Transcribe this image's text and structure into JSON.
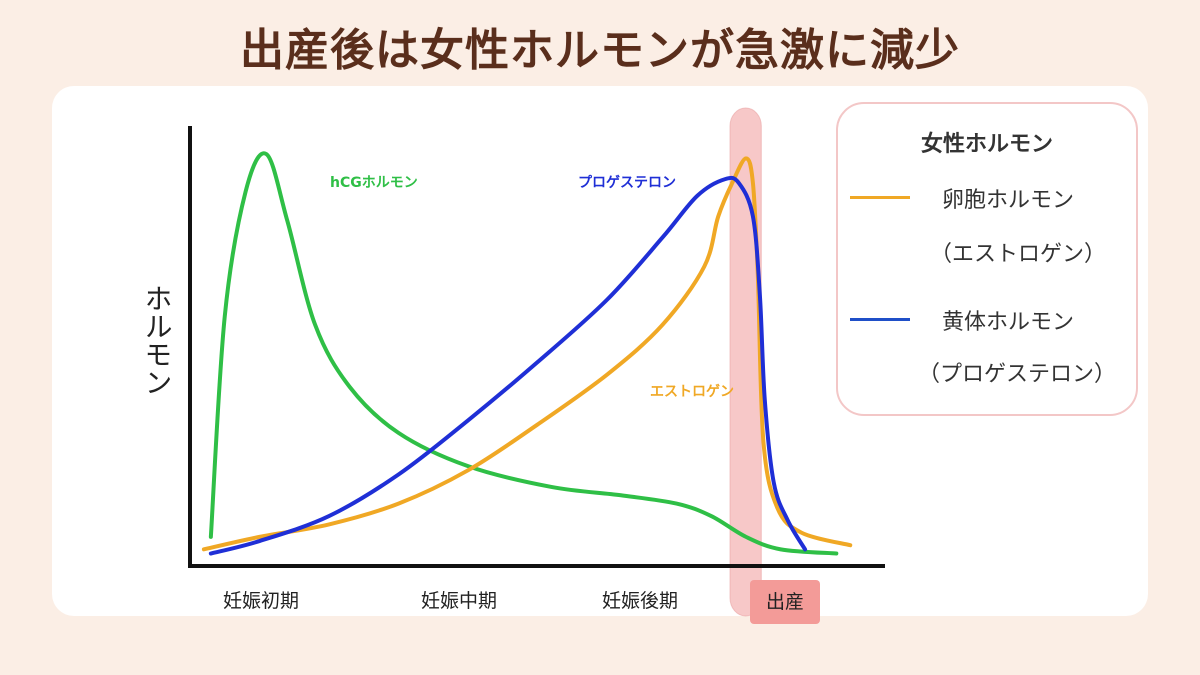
{
  "title": "出産後は女性ホルモンが急激に減少",
  "chart_data": {
    "type": "line",
    "ylabel": "ホルモン",
    "x_categories": [
      "妊娠初期",
      "妊娠中期",
      "妊娠後期",
      "出産"
    ],
    "x_range": [
      0,
      100
    ],
    "y_range": [
      0,
      100
    ],
    "birth_marker": {
      "label": "出産",
      "x_start": 77.7,
      "x_end": 82.2
    },
    "series": [
      {
        "name": "hCGホルモン",
        "label": "hCGホルモン",
        "color": "#2fbf46",
        "points": [
          [
            3,
            7
          ],
          [
            5,
            60
          ],
          [
            8,
            90
          ],
          [
            11,
            99
          ],
          [
            14,
            83
          ],
          [
            18,
            58
          ],
          [
            23,
            43
          ],
          [
            30,
            32
          ],
          [
            40,
            24
          ],
          [
            52,
            19
          ],
          [
            62,
            17
          ],
          [
            70,
            15
          ],
          [
            75,
            12
          ],
          [
            80,
            7
          ],
          [
            85,
            4
          ],
          [
            93,
            3
          ]
        ]
      },
      {
        "name": "エストロゲン",
        "label": "エストロゲン",
        "color": "#f0a825",
        "points": [
          [
            2,
            4
          ],
          [
            10,
            7
          ],
          [
            20,
            10
          ],
          [
            30,
            15
          ],
          [
            40,
            23
          ],
          [
            50,
            34
          ],
          [
            60,
            46
          ],
          [
            68,
            58
          ],
          [
            74,
            72
          ],
          [
            76,
            84
          ],
          [
            78,
            92
          ],
          [
            80,
            98
          ],
          [
            81,
            92
          ],
          [
            81.7,
            70
          ],
          [
            82.5,
            30
          ],
          [
            84.5,
            14
          ],
          [
            88,
            8
          ],
          [
            95,
            5
          ]
        ]
      },
      {
        "name": "プロゲステロン",
        "label": "プロゲステロン",
        "color": "#1f2fd6",
        "points": [
          [
            3,
            3
          ],
          [
            10,
            6
          ],
          [
            20,
            12
          ],
          [
            30,
            22
          ],
          [
            40,
            35
          ],
          [
            50,
            49
          ],
          [
            60,
            64
          ],
          [
            68,
            79
          ],
          [
            73,
            89
          ],
          [
            77,
            93
          ],
          [
            79,
            92
          ],
          [
            81,
            84
          ],
          [
            82,
            65
          ],
          [
            82.7,
            40
          ],
          [
            84,
            20
          ],
          [
            86,
            11
          ],
          [
            88.5,
            4
          ]
        ]
      }
    ]
  },
  "legend": {
    "title": "女性ホルモン",
    "items": [
      {
        "name": "卵胞ホルモン",
        "sub": "（エストロゲン）",
        "color": "#f0a825"
      },
      {
        "name": "黄体ホルモン",
        "sub": "（プロゲステロン）",
        "color": "#1f4fc8"
      }
    ]
  }
}
